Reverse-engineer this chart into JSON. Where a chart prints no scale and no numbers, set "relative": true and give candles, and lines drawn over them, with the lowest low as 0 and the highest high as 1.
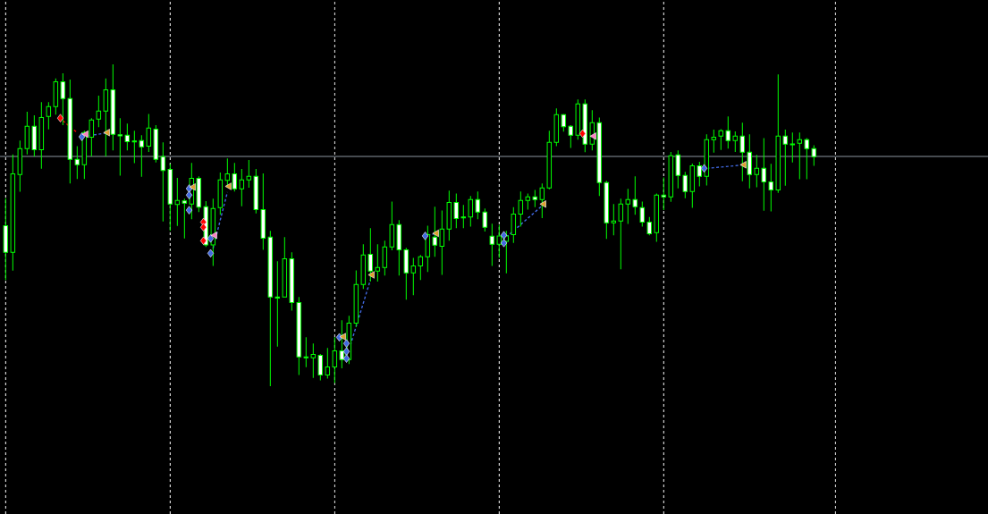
{
  "chart_data": {
    "type": "candlestick",
    "relative": true,
    "grid": "x",
    "color": "#00ff00",
    "categories": [
      null,
      null,
      null,
      null,
      null,
      null,
      null,
      null,
      null,
      null,
      null,
      null,
      null,
      null,
      null,
      null,
      null,
      null,
      null,
      null,
      null,
      null,
      null,
      null,
      null,
      null,
      null,
      null,
      null,
      null,
      null,
      null,
      null,
      null,
      null,
      null,
      null,
      null,
      null,
      null,
      null,
      null,
      null,
      null,
      null,
      null,
      null,
      null,
      null,
      null,
      null,
      null,
      null,
      null,
      null,
      null,
      null,
      null,
      null,
      null,
      null,
      null,
      null,
      null,
      null,
      null,
      null,
      null,
      null,
      null,
      null,
      null,
      null,
      null,
      null,
      null,
      null,
      null,
      null,
      null,
      null,
      null,
      null,
      null,
      null,
      null,
      null,
      null,
      null,
      null,
      null,
      null,
      null,
      null,
      null,
      null,
      null,
      null,
      null,
      null,
      null,
      null,
      null,
      null,
      null,
      null,
      null,
      null,
      null,
      null,
      null,
      null,
      null,
      null
    ],
    "ohlc": [
      [
        0.499,
        0.584,
        0.33,
        0.416
      ],
      [
        0.416,
        0.72,
        0.359,
        0.66
      ],
      [
        0.658,
        0.763,
        0.604,
        0.738
      ],
      [
        0.738,
        0.853,
        0.72,
        0.808
      ],
      [
        0.808,
        0.842,
        0.714,
        0.735
      ],
      [
        0.735,
        0.883,
        0.676,
        0.835
      ],
      [
        0.838,
        0.883,
        0.798,
        0.869
      ],
      [
        0.869,
        0.956,
        0.844,
        0.946
      ],
      [
        0.946,
        0.972,
        0.811,
        0.894
      ],
      [
        0.894,
        0.953,
        0.63,
        0.705
      ],
      [
        0.705,
        0.746,
        0.644,
        0.688
      ],
      [
        0.688,
        0.794,
        0.644,
        0.788
      ],
      [
        0.774,
        0.833,
        0.714,
        0.827
      ],
      [
        0.83,
        0.903,
        0.805,
        0.855
      ],
      [
        0.855,
        0.956,
        0.714,
        0.921
      ],
      [
        0.921,
        1,
        0.733,
        0.783
      ],
      [
        0.781,
        0.833,
        0.654,
        0.778
      ],
      [
        0.78,
        0.816,
        0.733,
        0.76
      ],
      [
        0.762,
        0.794,
        0.693,
        0.759
      ],
      [
        0.763,
        0.78,
        0.651,
        0.744
      ],
      [
        0.746,
        0.846,
        0.728,
        0.802
      ],
      [
        0.799,
        0.811,
        0.695,
        0.705
      ],
      [
        0.713,
        0.758,
        0.512,
        0.67
      ],
      [
        0.674,
        0.691,
        0.483,
        0.566
      ],
      [
        0.565,
        0.647,
        0.498,
        0.577
      ],
      [
        0.576,
        0.583,
        0.459,
        0.569
      ],
      [
        0.566,
        0.694,
        0.519,
        0.646
      ],
      [
        0.646,
        0.652,
        0.541,
        0.556
      ],
      [
        0.558,
        0.575,
        0.433,
        0.439
      ],
      [
        0.439,
        0.583,
        0.374,
        0.552
      ],
      [
        0.555,
        0.664,
        0.533,
        0.641
      ],
      [
        0.64,
        0.708,
        0.617,
        0.66
      ],
      [
        0.66,
        0.694,
        0.605,
        0.613
      ],
      [
        0.613,
        0.675,
        0.559,
        0.641
      ],
      [
        0.641,
        0.703,
        0.617,
        0.652
      ],
      [
        0.652,
        0.675,
        0.537,
        0.549
      ],
      [
        0.549,
        0.661,
        0.424,
        0.46
      ],
      [
        0.463,
        0.483,
        0,
        0.277
      ],
      [
        0.277,
        0.388,
        0.123,
        0.274
      ],
      [
        0.277,
        0.463,
        0.277,
        0.396
      ],
      [
        0.396,
        0.416,
        0.235,
        0.26
      ],
      [
        0.26,
        0.277,
        0.035,
        0.091
      ],
      [
        0.091,
        0.152,
        0.059,
        0.088
      ],
      [
        0.088,
        0.133,
        0.026,
        0.099
      ],
      [
        0.096,
        0.1,
        0.018,
        0.035
      ],
      [
        0.035,
        0.119,
        0.024,
        0.06
      ],
      [
        0.06,
        0.152,
        0.01,
        0.11
      ],
      [
        0.11,
        0.205,
        0.056,
        0.083
      ],
      [
        0.083,
        0.219,
        0.069,
        0.196
      ],
      [
        0.196,
        0.36,
        0.184,
        0.316
      ],
      [
        0.316,
        0.441,
        0.302,
        0.408
      ],
      [
        0.41,
        0.491,
        0.325,
        0.358
      ],
      [
        0.358,
        0.441,
        0.325,
        0.369
      ],
      [
        0.369,
        0.452,
        0.344,
        0.433
      ],
      [
        0.433,
        0.574,
        0.422,
        0.502
      ],
      [
        0.502,
        0.516,
        0.344,
        0.424
      ],
      [
        0.424,
        0.43,
        0.269,
        0.352
      ],
      [
        0.352,
        0.399,
        0.283,
        0.374
      ],
      [
        0.374,
        0.408,
        0.33,
        0.402
      ],
      [
        0.402,
        0.499,
        0.355,
        0.471
      ],
      [
        0.463,
        0.558,
        0.402,
        0.438
      ],
      [
        0.435,
        0.546,
        0.346,
        0.488
      ],
      [
        0.488,
        0.608,
        0.452,
        0.571
      ],
      [
        0.571,
        0.599,
        0.491,
        0.521
      ],
      [
        0.526,
        0.563,
        0.491,
        0.523
      ],
      [
        0.526,
        0.591,
        0.496,
        0.58
      ],
      [
        0.58,
        0.605,
        0.519,
        0.541
      ],
      [
        0.541,
        0.552,
        0.481,
        0.494
      ],
      [
        0.466,
        0.505,
        0.374,
        0.441
      ],
      [
        0.441,
        0.501,
        0.399,
        0.467
      ],
      [
        0.45,
        0.483,
        0.351,
        0.467
      ],
      [
        0.471,
        0.556,
        0.445,
        0.535
      ],
      [
        0.535,
        0.605,
        0.496,
        0.577
      ],
      [
        0.577,
        0.599,
        0.549,
        0.588
      ],
      [
        0.588,
        0.61,
        0.556,
        0.58
      ],
      [
        0.58,
        0.63,
        0.522,
        0.616
      ],
      [
        0.616,
        0.794,
        0.612,
        0.758
      ],
      [
        0.758,
        0.863,
        0.746,
        0.844
      ],
      [
        0.844,
        0.846,
        0.791,
        0.806
      ],
      [
        0.808,
        0.811,
        0.74,
        0.78
      ],
      [
        0.78,
        0.891,
        0.766,
        0.877
      ],
      [
        0.877,
        0.891,
        0.727,
        0.752
      ],
      [
        0.752,
        0.858,
        0.733,
        0.819
      ],
      [
        0.819,
        0.835,
        0.591,
        0.633
      ],
      [
        0.633,
        0.638,
        0.458,
        0.508
      ],
      [
        0.508,
        0.566,
        0.469,
        0.513
      ],
      [
        0.513,
        0.583,
        0.363,
        0.566
      ],
      [
        0.566,
        0.613,
        0.504,
        0.58
      ],
      [
        0.58,
        0.652,
        0.533,
        0.558
      ],
      [
        0.555,
        0.574,
        0.496,
        0.51
      ],
      [
        0.51,
        0.526,
        0.469,
        0.474
      ],
      [
        0.477,
        0.599,
        0.449,
        0.594
      ],
      [
        0.594,
        0.649,
        0.547,
        0.588
      ],
      [
        0.588,
        0.728,
        0.573,
        0.716
      ],
      [
        0.719,
        0.733,
        0.615,
        0.655
      ],
      [
        0.655,
        0.666,
        0.584,
        0.605
      ],
      [
        0.605,
        0.692,
        0.554,
        0.685
      ],
      [
        0.685,
        0.697,
        0.621,
        0.652
      ],
      [
        0.652,
        0.783,
        0.624,
        0.766
      ],
      [
        0.766,
        0.797,
        0.726,
        0.774
      ],
      [
        0.777,
        0.799,
        0.734,
        0.794
      ],
      [
        0.794,
        0.838,
        0.738,
        0.763
      ],
      [
        0.763,
        0.792,
        0.728,
        0.777
      ],
      [
        0.777,
        0.819,
        0.637,
        0.727
      ],
      [
        0.727,
        0.783,
        0.615,
        0.658
      ],
      [
        0.658,
        0.719,
        0.618,
        0.677
      ],
      [
        0.677,
        0.771,
        0.545,
        0.635
      ],
      [
        0.635,
        0.691,
        0.543,
        0.61
      ],
      [
        0.61,
        0.969,
        0.601,
        0.777
      ],
      [
        0.777,
        0.797,
        0.623,
        0.752
      ],
      [
        0.753,
        0.788,
        0.695,
        0.75
      ],
      [
        0.755,
        0.788,
        0.643,
        0.766
      ],
      [
        0.766,
        0.771,
        0.643,
        0.738
      ],
      [
        0.738,
        0.749,
        0.685,
        0.713
      ]
    ],
    "ref_lines": [
      {
        "axis": "y",
        "value": 0.714,
        "color": "#8c96a0"
      }
    ],
    "series": [
      {
        "type": "line",
        "color": "#4169e1",
        "line_style": "dashed",
        "values": [
          null,
          null,
          null,
          null,
          null,
          null,
          null,
          null,
          null,
          null,
          null,
          0.776,
          0.78,
          0.783,
          0.787,
          null,
          null,
          null,
          null,
          null,
          null,
          null,
          null,
          null,
          null,
          null,
          null,
          null,
          null,
          0.428,
          0.516,
          0.603,
          null,
          null,
          null,
          null,
          null,
          null,
          null,
          null,
          null,
          null,
          null,
          null,
          null,
          null,
          null,
          null,
          0.113,
          0.186,
          0.258,
          0.331,
          null,
          null,
          null,
          null,
          null,
          null,
          null,
          0.469,
          0.474,
          null,
          null,
          null,
          null,
          null,
          null,
          null,
          null,
          null,
          0.463,
          0.483,
          0.502,
          0.522,
          0.541,
          0.561,
          null,
          null,
          null,
          null,
          null,
          null,
          null,
          null,
          null,
          null,
          null,
          null,
          null,
          null,
          null,
          null,
          null,
          null,
          null,
          null,
          null,
          null,
          0.677,
          0.679,
          0.681,
          0.683,
          0.685,
          0.688,
          null,
          null,
          null,
          null,
          null,
          null,
          null,
          null,
          null,
          null
        ]
      },
      {
        "type": "line",
        "color": "#ff0000",
        "line_style": "dashed",
        "values": [
          null,
          null,
          null,
          null,
          null,
          null,
          null,
          null,
          0.825,
          0.806,
          0.788,
          null,
          null,
          null,
          null,
          null,
          null,
          null,
          null,
          null,
          null,
          null,
          null,
          null,
          null,
          null,
          null,
          null,
          null,
          null,
          null,
          null,
          null,
          null,
          null,
          null,
          null,
          null,
          null,
          null,
          null,
          null,
          null,
          null,
          null,
          null,
          null,
          null,
          null,
          null,
          null,
          null,
          null,
          null,
          null,
          null,
          null,
          null,
          null,
          null,
          null,
          null,
          null,
          null,
          null,
          null,
          null,
          null,
          null,
          null,
          null,
          null,
          null,
          null,
          null,
          null,
          null,
          null,
          null,
          null,
          null,
          null,
          null,
          null,
          null,
          null,
          null,
          null,
          null,
          null,
          null,
          null,
          null,
          null,
          null,
          null,
          null,
          null,
          null,
          null,
          null,
          null,
          null,
          null,
          null,
          null,
          null,
          null,
          null,
          null,
          null,
          null,
          null,
          null
        ]
      },
      {
        "type": "scatter",
        "color": "#4169e1",
        "marker": "diamond",
        "values": [
          null,
          null,
          null,
          null,
          null,
          null,
          null,
          null,
          null,
          null,
          null,
          0.775,
          null,
          null,
          null,
          null,
          null,
          null,
          null,
          null,
          null,
          null,
          null,
          null,
          null,
          null,
          0.614,
          null,
          null,
          0.459,
          null,
          null,
          null,
          null,
          null,
          null,
          null,
          null,
          null,
          null,
          null,
          null,
          null,
          null,
          null,
          null,
          null,
          0.152,
          0.133,
          null,
          null,
          null,
          null,
          null,
          null,
          null,
          null,
          null,
          null,
          0.467,
          null,
          null,
          null,
          null,
          null,
          null,
          null,
          null,
          null,
          null,
          0.469,
          null,
          null,
          null,
          null,
          null,
          null,
          null,
          null,
          null,
          null,
          null,
          null,
          null,
          null,
          null,
          null,
          null,
          null,
          null,
          null,
          null,
          null,
          null,
          null,
          null,
          null,
          null,
          0.677,
          null,
          null,
          null,
          null,
          null,
          null,
          null,
          null,
          null,
          null,
          null,
          null,
          null,
          null,
          null
        ]
      },
      {
        "type": "scatter",
        "color": "#4169e1",
        "marker": "diamond",
        "values": [
          null,
          null,
          null,
          null,
          null,
          null,
          null,
          null,
          null,
          null,
          null,
          null,
          null,
          null,
          null,
          null,
          null,
          null,
          null,
          null,
          null,
          null,
          null,
          null,
          null,
          null,
          0.594,
          null,
          null,
          0.413,
          null,
          null,
          null,
          null,
          null,
          null,
          null,
          null,
          null,
          null,
          null,
          null,
          null,
          null,
          null,
          null,
          null,
          null,
          0.108,
          null,
          null,
          null,
          null,
          null,
          null,
          null,
          null,
          null,
          null,
          null,
          null,
          null,
          null,
          null,
          null,
          null,
          null,
          null,
          null,
          null,
          0.445,
          null,
          null,
          null,
          null,
          null,
          null,
          null,
          null,
          null,
          null,
          null,
          null,
          null,
          null,
          null,
          null,
          null,
          null,
          null,
          null,
          null,
          null,
          null,
          null,
          null,
          null,
          null,
          null,
          null,
          null,
          null,
          null,
          null,
          null,
          null,
          null,
          null,
          null,
          null,
          null,
          null,
          null,
          null
        ]
      },
      {
        "type": "scatter",
        "color": "#4169e1",
        "marker": "diamond",
        "values": [
          null,
          null,
          null,
          null,
          null,
          null,
          null,
          null,
          null,
          null,
          null,
          null,
          null,
          null,
          null,
          null,
          null,
          null,
          null,
          null,
          null,
          null,
          null,
          null,
          null,
          null,
          0.547,
          null,
          null,
          null,
          null,
          null,
          null,
          null,
          null,
          null,
          null,
          null,
          null,
          null,
          null,
          null,
          null,
          null,
          null,
          null,
          null,
          null,
          0.086,
          null,
          null,
          null,
          null,
          null,
          null,
          null,
          null,
          null,
          null,
          null,
          null,
          null,
          null,
          null,
          null,
          null,
          null,
          null,
          null,
          null,
          null,
          null,
          null,
          null,
          null,
          null,
          null,
          null,
          null,
          null,
          null,
          null,
          null,
          null,
          null,
          null,
          null,
          null,
          null,
          null,
          null,
          null,
          null,
          null,
          null,
          null,
          null,
          null,
          null,
          null,
          null,
          null,
          null,
          null,
          null,
          null,
          null,
          null,
          null,
          null,
          null,
          null,
          null,
          null
        ]
      },
      {
        "type": "scatter",
        "color": "#ff0000",
        "marker": "diamond",
        "values": [
          null,
          null,
          null,
          null,
          null,
          null,
          null,
          null,
          0.833,
          null,
          null,
          null,
          null,
          null,
          null,
          null,
          null,
          null,
          null,
          null,
          null,
          null,
          null,
          null,
          null,
          null,
          null,
          null,
          0.51,
          null,
          null,
          null,
          null,
          null,
          null,
          null,
          null,
          null,
          null,
          null,
          null,
          null,
          null,
          null,
          null,
          null,
          null,
          null,
          null,
          null,
          null,
          null,
          null,
          null,
          null,
          null,
          null,
          null,
          null,
          null,
          null,
          null,
          null,
          null,
          null,
          null,
          null,
          null,
          null,
          null,
          null,
          null,
          null,
          null,
          null,
          null,
          null,
          null,
          null,
          null,
          null,
          0.785,
          null,
          null,
          null,
          null,
          null,
          null,
          null,
          null,
          null,
          null,
          null,
          null,
          null,
          null,
          null,
          null,
          null,
          null,
          null,
          null,
          null,
          null,
          null,
          null,
          null,
          null,
          null,
          null,
          null,
          null,
          null,
          null
        ]
      },
      {
        "type": "scatter",
        "color": "#ff0000",
        "marker": "diamond",
        "values": [
          null,
          null,
          null,
          null,
          null,
          null,
          null,
          null,
          null,
          null,
          null,
          null,
          null,
          null,
          null,
          null,
          null,
          null,
          null,
          null,
          null,
          null,
          null,
          null,
          null,
          null,
          null,
          null,
          0.494,
          null,
          null,
          null,
          null,
          null,
          null,
          null,
          null,
          null,
          null,
          null,
          null,
          null,
          null,
          null,
          null,
          null,
          null,
          null,
          null,
          null,
          null,
          null,
          null,
          null,
          null,
          null,
          null,
          null,
          null,
          null,
          null,
          null,
          null,
          null,
          null,
          null,
          null,
          null,
          null,
          null,
          null,
          null,
          null,
          null,
          null,
          null,
          null,
          null,
          null,
          null,
          null,
          null,
          null,
          null,
          null,
          null,
          null,
          null,
          null,
          null,
          null,
          null,
          null,
          null,
          null,
          null,
          null,
          null,
          null,
          null,
          null,
          null,
          null,
          null,
          null,
          null,
          null,
          null,
          null,
          null,
          null,
          null,
          null,
          null
        ]
      },
      {
        "type": "scatter",
        "color": "#ff0000",
        "marker": "diamond",
        "values": [
          null,
          null,
          null,
          null,
          null,
          null,
          null,
          null,
          null,
          null,
          null,
          null,
          null,
          null,
          null,
          null,
          null,
          null,
          null,
          null,
          null,
          null,
          null,
          null,
          null,
          null,
          null,
          null,
          0.452,
          null,
          null,
          null,
          null,
          null,
          null,
          null,
          null,
          null,
          null,
          null,
          null,
          null,
          null,
          null,
          null,
          null,
          null,
          null,
          null,
          null,
          null,
          null,
          null,
          null,
          null,
          null,
          null,
          null,
          null,
          null,
          null,
          null,
          null,
          null,
          null,
          null,
          null,
          null,
          null,
          null,
          null,
          null,
          null,
          null,
          null,
          null,
          null,
          null,
          null,
          null,
          null,
          null,
          null,
          null,
          null,
          null,
          null,
          null,
          null,
          null,
          null,
          null,
          null,
          null,
          null,
          null,
          null,
          null,
          null,
          null,
          null,
          null,
          null,
          null,
          null,
          null,
          null,
          null,
          null,
          null,
          null,
          null,
          null,
          null
        ]
      },
      {
        "type": "scatter",
        "color": "#e0a030",
        "marker": "triangle",
        "values": [
          null,
          null,
          null,
          null,
          null,
          null,
          null,
          null,
          null,
          null,
          null,
          null,
          null,
          null,
          0.788,
          null,
          null,
          null,
          null,
          null,
          null,
          null,
          null,
          null,
          null,
          null,
          0.619,
          null,
          null,
          null,
          null,
          0.621,
          null,
          null,
          null,
          null,
          null,
          null,
          null,
          null,
          null,
          null,
          null,
          null,
          null,
          null,
          null,
          0.154,
          null,
          null,
          null,
          0.346,
          null,
          null,
          null,
          null,
          null,
          null,
          null,
          null,
          0.475,
          null,
          null,
          null,
          null,
          null,
          null,
          null,
          null,
          null,
          null,
          null,
          null,
          null,
          null,
          0.566,
          null,
          null,
          null,
          null,
          null,
          null,
          null,
          null,
          null,
          null,
          null,
          null,
          null,
          null,
          null,
          null,
          null,
          null,
          null,
          null,
          null,
          null,
          null,
          null,
          null,
          null,
          null,
          0.688,
          null,
          null,
          null,
          null,
          null,
          null,
          null,
          null,
          null,
          null
        ]
      },
      {
        "type": "scatter",
        "color": "#ff80c0",
        "marker": "triangle",
        "values": [
          null,
          null,
          null,
          null,
          null,
          null,
          null,
          null,
          null,
          null,
          null,
          0.783,
          null,
          null,
          null,
          null,
          null,
          null,
          null,
          null,
          null,
          null,
          null,
          null,
          null,
          null,
          null,
          null,
          null,
          0.469,
          null,
          null,
          null,
          null,
          null,
          null,
          null,
          null,
          null,
          null,
          null,
          null,
          null,
          null,
          null,
          null,
          null,
          null,
          null,
          null,
          null,
          null,
          null,
          null,
          null,
          null,
          null,
          null,
          null,
          null,
          null,
          null,
          null,
          null,
          null,
          null,
          null,
          null,
          null,
          null,
          null,
          null,
          null,
          null,
          null,
          null,
          null,
          null,
          null,
          null,
          null,
          null,
          0.777,
          null,
          null,
          null,
          null,
          null,
          null,
          null,
          null,
          null,
          null,
          null,
          null,
          null,
          null,
          null,
          null,
          null,
          null,
          null,
          null,
          null,
          null,
          null,
          null,
          null,
          null,
          null,
          null,
          null,
          null,
          null
        ]
      }
    ]
  }
}
